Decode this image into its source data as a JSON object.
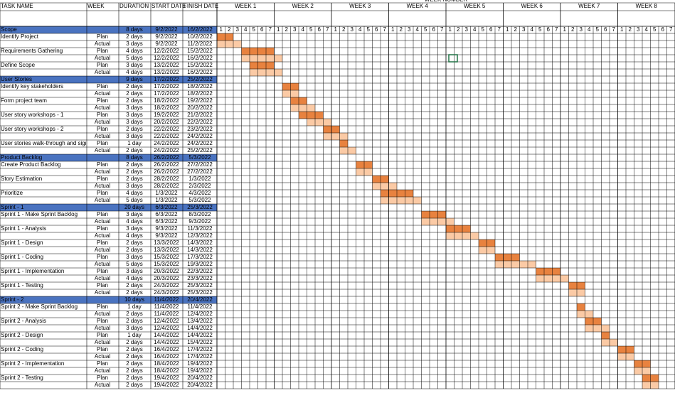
{
  "header": {
    "top_label": "WEEK NUMBER",
    "columns": [
      "TASK NAME",
      "WEEK",
      "DURATION",
      "START DATE",
      "FINISH DATE"
    ],
    "weeks": [
      "WEEK 1",
      "WEEK 2",
      "WEEK 3",
      "WEEK 4",
      "WEEK 5",
      "WEEK 6",
      "WEEK 7",
      "WEEK 8"
    ],
    "days": [
      1,
      2,
      3,
      4,
      5,
      6,
      7
    ]
  },
  "rows": [
    {
      "task": "Scope",
      "summary": true,
      "duration": "8 days",
      "start": "9/2/2022",
      "finish": "16/2/2022"
    },
    {
      "task": "Identify Project",
      "week": "Plan",
      "duration": "2 days",
      "start": "9/2/2022",
      "finish": "10/2/2022"
    },
    {
      "week": "Actual",
      "duration": "3 days",
      "start": "9/2/2022",
      "finish": "11/2/2022"
    },
    {
      "task": "Requirements Gathering",
      "week": "Plan",
      "duration": "4 days",
      "start": "12/2/2022",
      "finish": "15/2/2022"
    },
    {
      "week": "Actual",
      "duration": "5 days",
      "start": "12/2/2022",
      "finish": "16/2/2022"
    },
    {
      "task": "Define Scope",
      "week": "Plan",
      "duration": "3 days",
      "start": "13/2/2022",
      "finish": "15/2/2022"
    },
    {
      "week": "Actual",
      "duration": "4 days",
      "start": "13/2/2022",
      "finish": "16/2/2022"
    },
    {
      "task": "User Stories",
      "summary": true,
      "duration": "9 days",
      "start": "17/2/2022",
      "finish": "25/2/2022"
    },
    {
      "task": "Identify key stakeholders",
      "week": "Plan",
      "duration": "2 days",
      "start": "17/2/2022",
      "finish": "18/2/2022"
    },
    {
      "week": "Actual",
      "duration": "2 days",
      "start": "17/2/2022",
      "finish": "18/2/2022"
    },
    {
      "task": "Form project team",
      "week": "Plan",
      "duration": "2 days",
      "start": "18/2/2022",
      "finish": "19/2/2022"
    },
    {
      "week": "Actual",
      "duration": "3 days",
      "start": "18/2/2022",
      "finish": "20/2/2022"
    },
    {
      "task": "User story workshops - 1",
      "week": "Plan",
      "duration": "3 days",
      "start": "19/2/2022",
      "finish": "21/2/2022"
    },
    {
      "week": "Actual",
      "duration": "3 days",
      "start": "20/2/2022",
      "finish": "22/2/2022"
    },
    {
      "task": "User story workshops - 2",
      "week": "Plan",
      "duration": "2 days",
      "start": "22/2/2022",
      "finish": "23/2/2022"
    },
    {
      "week": "Actual",
      "duration": "3 days",
      "start": "22/2/2022",
      "finish": "24/2/2022"
    },
    {
      "task": "User stories walk-through and sign",
      "week": "Plan",
      "duration": "1 day",
      "start": "24/2/2022",
      "finish": "24/2/2022"
    },
    {
      "week": "Actual",
      "duration": "2 days",
      "start": "24/2/2022",
      "finish": "25/2/2022"
    },
    {
      "task": "Product Backlog",
      "summary": true,
      "duration": "8 days",
      "start": "26/2/2022",
      "finish": "5/3/2022"
    },
    {
      "task": "Create Product Backlog",
      "week": "Plan",
      "duration": "2 days",
      "start": "26/2/2022",
      "finish": "27/2/2022"
    },
    {
      "week": "Actual",
      "duration": "2 days",
      "start": "26/2/2022",
      "finish": "27/2/2022"
    },
    {
      "task": "Story Estimation",
      "week": "Plan",
      "duration": "2 days",
      "start": "28/2/2022",
      "finish": "1/3/2022"
    },
    {
      "week": "Actual",
      "duration": "3 days",
      "start": "28/2/2022",
      "finish": "2/3/2022"
    },
    {
      "task": "Prioritize",
      "week": "Plan",
      "duration": "4 days",
      "start": "1/3/2022",
      "finish": "4/3/2022"
    },
    {
      "week": "Actual",
      "duration": "5 days",
      "start": "1/3/2022",
      "finish": "5/3/2022"
    },
    {
      "task": "Sprint - 1",
      "summary": true,
      "duration": "20 days",
      "start": "6/3/2022",
      "finish": "25/3/2022"
    },
    {
      "task": "Sprint 1 - Make Sprint Backlog",
      "week": "Plan",
      "duration": "3 days",
      "start": "6/3/2022",
      "finish": "8/3/2022"
    },
    {
      "week": "Actual",
      "duration": "4 days",
      "start": "6/3/2022",
      "finish": "9/3/2022"
    },
    {
      "task": "Sprint 1 - Analysis",
      "week": "Plan",
      "duration": "3 days",
      "start": "9/3/2022",
      "finish": "11/3/2022"
    },
    {
      "week": "Actual",
      "duration": "4 days",
      "start": "9/3/2022",
      "finish": "12/3/2022"
    },
    {
      "task": "Sprint 1 - Design",
      "week": "Plan",
      "duration": "2 days",
      "start": "13/3/2022",
      "finish": "14/3/2022"
    },
    {
      "week": "Actual",
      "duration": "2 days",
      "start": "13/3/2022",
      "finish": "14/3/2022"
    },
    {
      "task": "Sprint 1 - Coding",
      "week": "Plan",
      "duration": "3 days",
      "start": "15/3/2022",
      "finish": "17/3/2022"
    },
    {
      "week": "Actual",
      "duration": "5 days",
      "start": "15/3/2022",
      "finish": "19/3/2022"
    },
    {
      "task": "Sprint 1 - Implementation",
      "week": "Plan",
      "duration": "3 days",
      "start": "20/3/2022",
      "finish": "22/3/2022"
    },
    {
      "week": "Actual",
      "duration": "4 days",
      "start": "20/3/2022",
      "finish": "23/3/2022"
    },
    {
      "task": "Sprint 1 - Testing",
      "week": "Plan",
      "duration": "2 days",
      "start": "24/3/2022",
      "finish": "25/3/2022"
    },
    {
      "week": "Actual",
      "duration": "2 days",
      "start": "24/3/2022",
      "finish": "25/3/2022"
    },
    {
      "task": "Sprint - 2",
      "summary": true,
      "duration": "10 days",
      "start": "11/4/2022",
      "finish": "20/4/2022"
    },
    {
      "task": "Sprint 2 - Make Sprint Backlog",
      "week": "Plan",
      "duration": "1 day",
      "start": "11/4/2022",
      "finish": "11/4/2022"
    },
    {
      "week": "Actual",
      "duration": "2 days",
      "start": "11/4/2022",
      "finish": "12/4/2022"
    },
    {
      "task": "Sprint 2 - Analysis",
      "week": "Plan",
      "duration": "2 days",
      "start": "12/4/2022",
      "finish": "13/4/2022"
    },
    {
      "week": "Actual",
      "duration": "3 days",
      "start": "12/4/2022",
      "finish": "14/4/2022"
    },
    {
      "task": "Sprint 2 - Design",
      "week": "Plan",
      "duration": "1 day",
      "start": "14/4/2022",
      "finish": "14/4/2022"
    },
    {
      "week": "Actual",
      "duration": "2 days",
      "start": "14/4/2022",
      "finish": "15/4/2022"
    },
    {
      "task": "Sprint 2 - Coding",
      "week": "Plan",
      "duration": "2 days",
      "start": "16/4/2022",
      "finish": "17/4/2022"
    },
    {
      "week": "Actual",
      "duration": "2 days",
      "start": "16/4/2022",
      "finish": "17/4/2022"
    },
    {
      "task": "Sprint 2 - Implementation",
      "week": "Plan",
      "duration": "2 days",
      "start": "18/4/2022",
      "finish": "19/4/2022"
    },
    {
      "week": "Actual",
      "duration": "2 days",
      "start": "18/4/2022",
      "finish": "19/4/2022"
    },
    {
      "task": "Sprint 2 - Testing",
      "week": "Plan",
      "duration": "2 days",
      "start": "19/4/2022",
      "finish": "20/4/2022"
    },
    {
      "week": "Actual",
      "duration": "2 days",
      "start": "19/4/2022",
      "finish": "20/4/2022"
    }
  ]
}
